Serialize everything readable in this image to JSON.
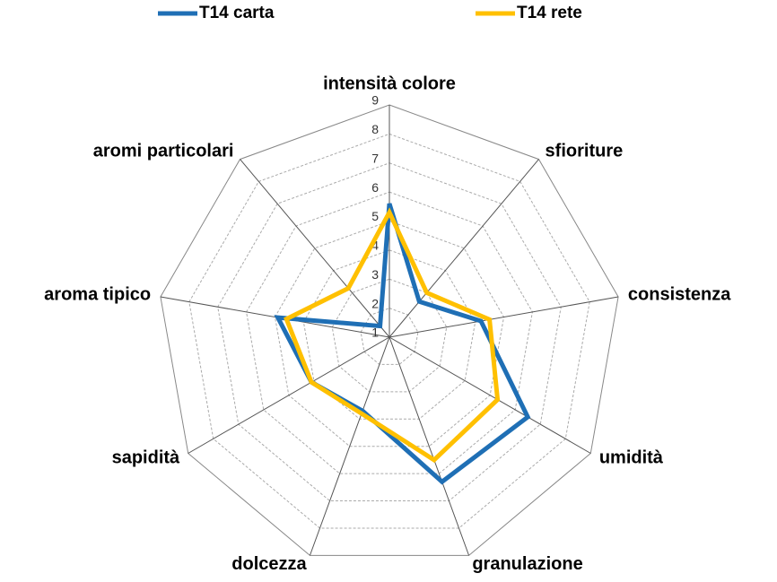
{
  "chart_data": {
    "type": "radar",
    "categories": [
      "intensità colore",
      "sfioriture",
      "consistenza",
      "umidità",
      "granulazione",
      "dolcezza",
      "sapidità",
      "aroma tipico",
      "aromi particolari"
    ],
    "series": [
      {
        "name": "T14 carta",
        "color": "#1f6fb5",
        "values": [
          5.6,
          2.6,
          4.2,
          6.5,
          6.3,
          3.7,
          4.1,
          4.9,
          1.5
        ]
      },
      {
        "name": "T14 rete",
        "color": "#ffc000",
        "values": [
          5.3,
          3.0,
          4.5,
          5.3,
          5.5,
          3.8,
          4.1,
          4.6,
          3.2
        ]
      }
    ],
    "ylim": [
      1,
      9
    ],
    "yticks": [
      1,
      2,
      3,
      4,
      5,
      6,
      7,
      8,
      9
    ],
    "grid": true,
    "legend": "top"
  }
}
